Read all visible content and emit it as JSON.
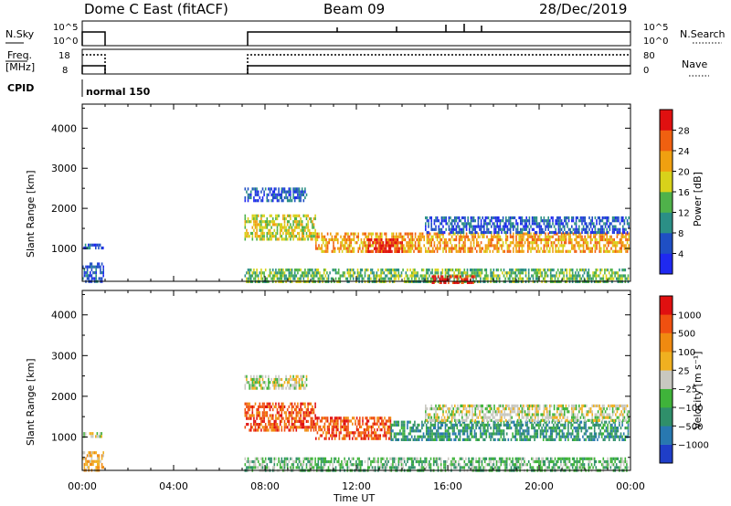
{
  "header": {
    "title": "Dome C East (fitACF)",
    "beam": "Beam 09",
    "date": "28/Dec/2019"
  },
  "status_panels": {
    "nsky_label": "N.Sky",
    "nsky_top": "10^5",
    "nsky_bottom": "10^0",
    "nsearch_label": "N.Search",
    "freq_label_1": "Freq.",
    "freq_label_2": "[MHz]",
    "freq_top": "18",
    "freq_bottom": "8",
    "nave_label": "Nave",
    "nave_top": "80",
    "nave_bottom": "0",
    "cpid_label": "CPID",
    "cpid_value": "normal 150"
  },
  "chart_data": [
    {
      "type": "heatmap",
      "name": "power",
      "ylabel": "Slant Range [km]",
      "xlim": [
        0,
        24
      ],
      "ylim": [
        180,
        4600
      ],
      "yticks": [
        "1000",
        "2000",
        "3000",
        "4000"
      ],
      "colorbar": {
        "label": "Power [dB]",
        "tick_labels": [
          "4",
          "8",
          "12",
          "16",
          "20",
          "24",
          "28"
        ],
        "colors": [
          "#1f29f0",
          "#1f4fc4",
          "#2b8f86",
          "#4fb24a",
          "#d8d21a",
          "#f0a010",
          "#f06010",
          "#e01010"
        ]
      },
      "regions": [
        {
          "t0": 0.0,
          "t1": 0.9,
          "r0": 180,
          "r1": 650,
          "c": 1
        },
        {
          "t0": 0.05,
          "t1": 0.9,
          "r0": 1030,
          "r1": 1120,
          "c": 1
        },
        {
          "t0": 7.1,
          "t1": 9.8,
          "r0": 2200,
          "r1": 2520,
          "c": 1
        },
        {
          "t0": 7.1,
          "t1": 10.2,
          "r0": 1200,
          "r1": 1850,
          "c": 4
        },
        {
          "t0": 10.2,
          "t1": 23.9,
          "r0": 900,
          "r1": 1400,
          "c": 5
        },
        {
          "t0": 12.5,
          "t1": 14.0,
          "r0": 950,
          "r1": 1250,
          "c": 7
        },
        {
          "t0": 15.0,
          "t1": 23.9,
          "r0": 1400,
          "r1": 1800,
          "c": 1
        },
        {
          "t0": 7.1,
          "t1": 23.9,
          "r0": 180,
          "r1": 500,
          "c": 3
        },
        {
          "t0": 15.3,
          "t1": 17.2,
          "r0": 180,
          "r1": 330,
          "c": 7
        }
      ]
    },
    {
      "type": "heatmap",
      "name": "velocity",
      "ylabel": "Slant Range [km]",
      "xlabel": "Time UT",
      "xlim": [
        0,
        24
      ],
      "ylim": [
        180,
        4600
      ],
      "xticks": [
        "00:00",
        "04:00",
        "08:00",
        "12:00",
        "16:00",
        "20:00",
        "00:00"
      ],
      "yticks": [
        "1000",
        "2000",
        "3000",
        "4000"
      ],
      "colorbar": {
        "label": "Velocity [m s⁻¹]",
        "tick_labels": [
          "1000",
          "500",
          "100",
          "25",
          "−25",
          "−100",
          "−500",
          "−1000"
        ],
        "colors": [
          "#1f3ec8",
          "#2878b0",
          "#2f8f6a",
          "#3fb33a",
          "#c8c8c0",
          "#f0b020",
          "#f08a10",
          "#f05010",
          "#e01010"
        ]
      },
      "regions": [
        {
          "t0": 0.0,
          "t1": 0.9,
          "r0": 180,
          "r1": 650,
          "c": 5
        },
        {
          "t0": 0.05,
          "t1": 0.9,
          "r0": 1030,
          "r1": 1120,
          "c": 4
        },
        {
          "t0": 7.1,
          "t1": 9.8,
          "r0": 2200,
          "r1": 2520,
          "c": 4
        },
        {
          "t0": 7.1,
          "t1": 10.2,
          "r0": 1200,
          "r1": 1850,
          "c": 7
        },
        {
          "t0": 10.2,
          "t1": 13.5,
          "r0": 950,
          "r1": 1500,
          "c": 7
        },
        {
          "t0": 13.5,
          "t1": 23.9,
          "r0": 900,
          "r1": 1400,
          "c": 2
        },
        {
          "t0": 15.0,
          "t1": 23.9,
          "r0": 1400,
          "r1": 1800,
          "c": 4
        },
        {
          "t0": 7.1,
          "t1": 23.9,
          "r0": 180,
          "r1": 500,
          "c": 3
        }
      ]
    }
  ]
}
